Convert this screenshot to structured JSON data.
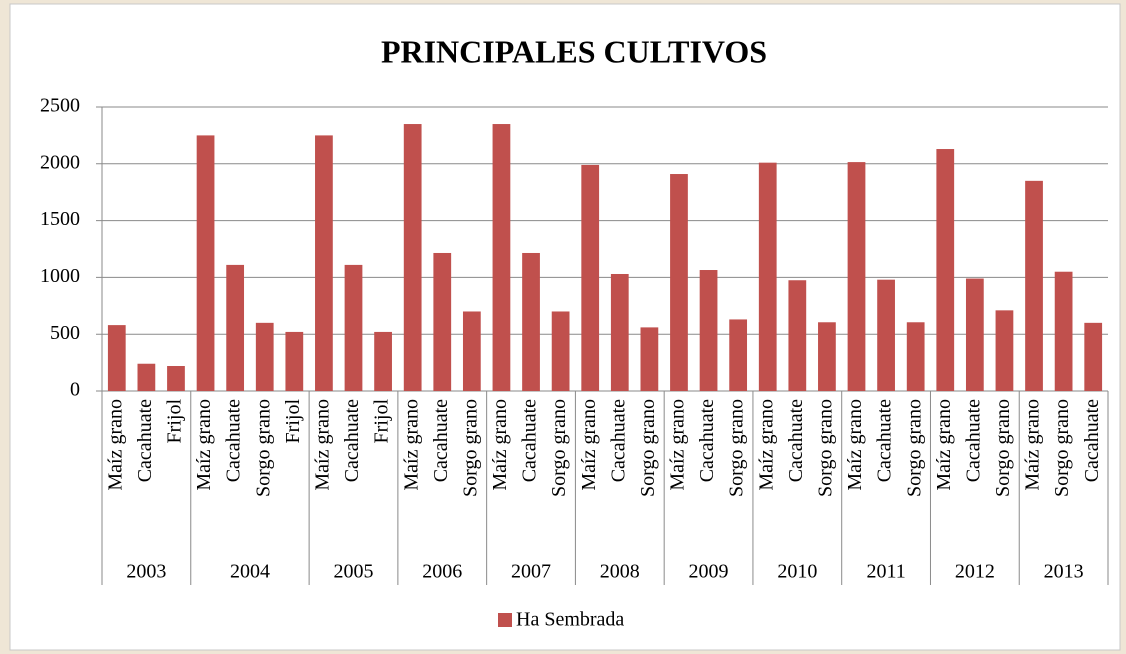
{
  "chart_data": {
    "type": "bar",
    "title": "PRINCIPALES CULTIVOS",
    "series": [
      {
        "name": "Ha Sembrada",
        "color": "#c0504d"
      }
    ],
    "groups": [
      {
        "label": "2003",
        "categories": [
          "Maíz grano",
          "Cacahuate",
          "Frijol"
        ],
        "values": [
          580,
          240,
          220
        ]
      },
      {
        "label": "2004",
        "categories": [
          "Maíz grano",
          "Cacahuate",
          "Sorgo grano",
          "Frijol"
        ],
        "values": [
          2250,
          1110,
          600,
          520
        ]
      },
      {
        "label": "2005",
        "categories": [
          "Maíz grano",
          "Cacahuate",
          "Frijol"
        ],
        "values": [
          2250,
          1110,
          520
        ]
      },
      {
        "label": "2006",
        "categories": [
          "Maíz grano",
          "Cacahuate",
          "Sorgo grano"
        ],
        "values": [
          2350,
          1215,
          700
        ]
      },
      {
        "label": "2007",
        "categories": [
          "Maíz grano",
          "Cacahuate",
          "Sorgo grano"
        ],
        "values": [
          2350,
          1215,
          700
        ]
      },
      {
        "label": "2008",
        "categories": [
          "Maíz grano",
          "Cacahuate",
          "Sorgo grano"
        ],
        "values": [
          1990,
          1030,
          560
        ]
      },
      {
        "label": "2009",
        "categories": [
          "Maíz grano",
          "Cacahuate",
          "Sorgo grano"
        ],
        "values": [
          1910,
          1065,
          630
        ]
      },
      {
        "label": "2010",
        "categories": [
          "Maíz grano",
          "Cacahuate",
          "Sorgo grano"
        ],
        "values": [
          2010,
          975,
          605
        ]
      },
      {
        "label": "2011",
        "categories": [
          "Maíz grano",
          "Cacahuate",
          "Sorgo grano"
        ],
        "values": [
          2015,
          980,
          605
        ]
      },
      {
        "label": "2012",
        "categories": [
          "Maíz grano",
          "Cacahuate",
          "Sorgo grano"
        ],
        "values": [
          2130,
          990,
          710
        ]
      },
      {
        "label": "2013",
        "categories": [
          "Maíz grano",
          "Sorgo grano",
          "Cacahuate"
        ],
        "values": [
          1850,
          1050,
          600
        ]
      }
    ],
    "ylim": [
      0,
      2500
    ],
    "yticks": [
      0,
      500,
      1000,
      1500,
      2000,
      2500
    ],
    "grid": true,
    "legend": "bottom"
  }
}
